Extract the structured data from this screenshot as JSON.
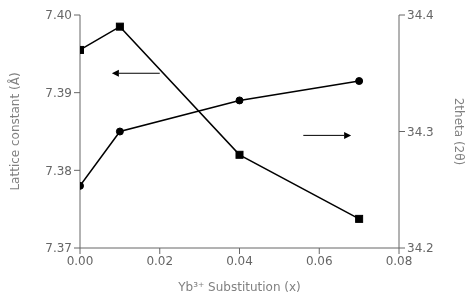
{
  "chart_data": {
    "type": "line",
    "xlabel": "Yb³⁺ Substitution (x)",
    "ylabel": "Lattice constant (Å)",
    "y2label": "2theta (2θ)",
    "x": [
      0.0,
      0.01,
      0.04,
      0.07
    ],
    "series": [
      {
        "color": "#000000",
        "marker": "circle",
        "values": [
          7.378,
          7.385,
          7.389,
          7.3915
        ]
      },
      {
        "color": "#000000",
        "marker": "square",
        "values": [
          34.37,
          34.39,
          34.28,
          34.225
        ],
        "axis": "y2"
      }
    ],
    "xlim": [
      0.0,
      0.08
    ],
    "xticks": [
      {
        "value": 0.0,
        "label": "0.00"
      },
      0.02,
      0.04,
      0.06,
      0.08
    ],
    "ylim": [
      7.37,
      7.4
    ],
    "yticks": [
      7.37,
      7.38,
      7.39,
      {
        "value": 7.4,
        "label": "7.40"
      }
    ],
    "y2lim": [
      34.2,
      34.4
    ],
    "y2ticks": [
      34.2,
      34.3,
      34.4
    ],
    "arrows": [
      {
        "from": [
          0.02,
          7.3925
        ],
        "to": [
          0.008,
          7.3925
        ]
      },
      {
        "from": [
          0.056,
          7.3845
        ],
        "to": [
          0.068,
          7.3845
        ]
      }
    ]
  }
}
